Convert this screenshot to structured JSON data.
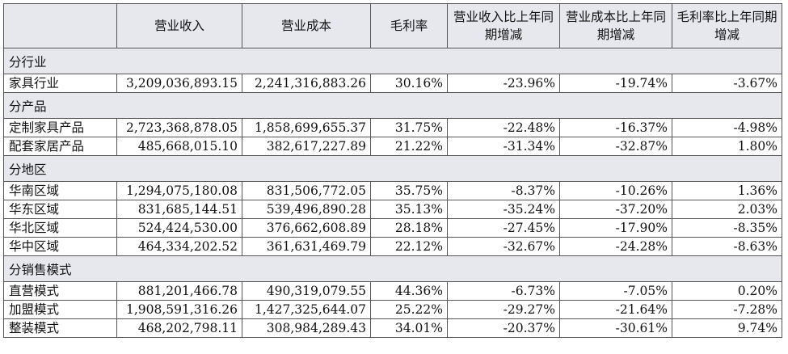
{
  "headers": [
    "",
    "营业收入",
    "营业成本",
    "毛利率",
    "营业收入比上年同期增减",
    "营业成本比上年同期增减",
    "毛利率比上年同期增减"
  ],
  "sections": [
    {
      "title": "分行业",
      "rows": [
        [
          "家具行业",
          "3,209,036,893.15",
          "2,241,316,883.26",
          "30.16%",
          "-23.96%",
          "-19.74%",
          "-3.67%"
        ]
      ]
    },
    {
      "title": "分产品",
      "rows": [
        [
          "定制家具产品",
          "2,723,368,878.05",
          "1,858,699,655.37",
          "31.75%",
          "-22.48%",
          "-16.37%",
          "-4.98%"
        ],
        [
          "配套家居产品",
          "485,668,015.10",
          "382,617,227.89",
          "21.22%",
          "-31.34%",
          "-32.87%",
          "1.80%"
        ]
      ]
    },
    {
      "title": "分地区",
      "rows": [
        [
          "华南区域",
          "1,294,075,180.08",
          "831,506,772.05",
          "35.75%",
          "-8.37%",
          "-10.26%",
          "1.36%"
        ],
        [
          "华东区域",
          "831,685,144.51",
          "539,496,890.28",
          "35.13%",
          "-35.24%",
          "-37.20%",
          "2.03%"
        ],
        [
          "华北区域",
          "524,424,530.00",
          "376,662,608.89",
          "28.18%",
          "-27.45%",
          "-17.90%",
          "-8.35%"
        ],
        [
          "华中区域",
          "464,334,202.52",
          "361,631,469.79",
          "22.12%",
          "-32.67%",
          "-24.28%",
          "-8.63%"
        ]
      ]
    },
    {
      "title": "分销售模式",
      "rows": [
        [
          "直营模式",
          "881,201,466.78",
          "490,319,079.55",
          "44.36%",
          "-6.73%",
          "-7.05%",
          "0.20%"
        ],
        [
          "加盟模式",
          "1,908,591,316.26",
          "1,427,325,644.07",
          "25.22%",
          "-29.27%",
          "-21.64%",
          "-7.28%"
        ],
        [
          "整装模式",
          "468,202,798.11",
          "308,984,289.43",
          "34.01%",
          "-20.37%",
          "-30.61%",
          "9.74%"
        ]
      ]
    }
  ]
}
